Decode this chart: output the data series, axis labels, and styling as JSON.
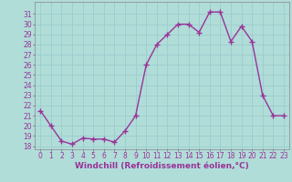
{
  "x": [
    0,
    1,
    2,
    3,
    4,
    5,
    6,
    7,
    8,
    9,
    10,
    11,
    12,
    13,
    14,
    15,
    16,
    17,
    18,
    19,
    20,
    21,
    22,
    23
  ],
  "y": [
    21.5,
    20.0,
    18.5,
    18.2,
    18.8,
    18.7,
    18.7,
    18.4,
    19.5,
    21.0,
    26.0,
    28.0,
    29.0,
    30.0,
    30.0,
    29.2,
    31.2,
    31.2,
    28.3,
    29.8,
    28.3,
    23.0,
    21.0,
    21.0
  ],
  "line_color": "#993399",
  "marker": "+",
  "markersize": 4,
  "linewidth": 1.0,
  "markeredgewidth": 1.0,
  "xlabel": "Windchill (Refroidissement éolien,°C)",
  "xlabel_fontsize": 6.5,
  "background_color": "#b0ddd8",
  "grid_color": "#9ecece",
  "tick_color": "#993399",
  "label_color": "#993399",
  "ylim": [
    17.7,
    32.2
  ],
  "xlim": [
    -0.5,
    23.5
  ],
  "yticks": [
    18,
    19,
    20,
    21,
    22,
    23,
    24,
    25,
    26,
    27,
    28,
    29,
    30,
    31
  ],
  "xticks": [
    0,
    1,
    2,
    3,
    4,
    5,
    6,
    7,
    8,
    9,
    10,
    11,
    12,
    13,
    14,
    15,
    16,
    17,
    18,
    19,
    20,
    21,
    22,
    23
  ],
  "tick_fontsize": 5.5,
  "spine_color": "#888888"
}
